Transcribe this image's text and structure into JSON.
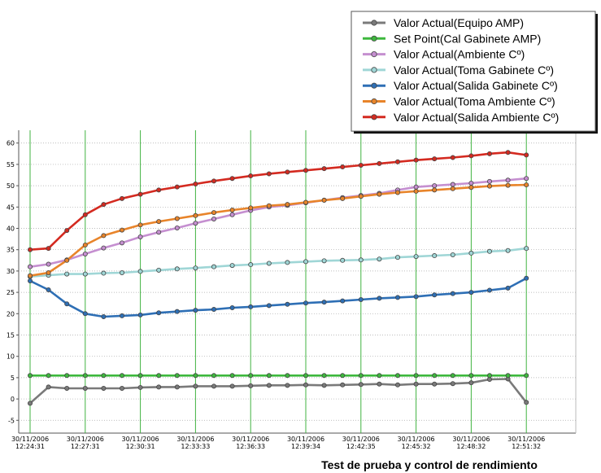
{
  "chart_data": {
    "type": "line",
    "title": "",
    "caption": "Test de prueba  y control de rendimiento",
    "xlabel": "",
    "ylabel": "",
    "ylim": [
      -8,
      63
    ],
    "y_ticks": [
      -5,
      0,
      5,
      10,
      15,
      20,
      25,
      30,
      35,
      40,
      45,
      50,
      55,
      60
    ],
    "grid": true,
    "legend_position": "top-right",
    "x_tick_labels": [
      [
        "30/11/2006",
        "12:24:31"
      ],
      [
        "30/11/2006",
        "12:27:31"
      ],
      [
        "30/11/2006",
        "12:30:31"
      ],
      [
        "30/11/2006",
        "12:33:33"
      ],
      [
        "30/11/2006",
        "12:36:33"
      ],
      [
        "30/11/2006",
        "12:39:34"
      ],
      [
        "30/11/2006",
        "12:42:35"
      ],
      [
        "30/11/2006",
        "12:45:32"
      ],
      [
        "30/11/2006",
        "12:48:32"
      ],
      [
        "30/11/2006",
        "12:51:32"
      ]
    ],
    "series": [
      {
        "name": "Valor Actual(Equipo AMP)",
        "color": "#7a7a7a",
        "values": [
          -1,
          2.8,
          2.5,
          2.5,
          2.5,
          2.5,
          2.7,
          2.8,
          2.8,
          3,
          3,
          3,
          3.1,
          3.2,
          3.2,
          3.3,
          3.2,
          3.3,
          3.4,
          3.5,
          3.3,
          3.5,
          3.5,
          3.6,
          3.8,
          4.6,
          4.7,
          -0.8
        ]
      },
      {
        "name": "Set Point(Cal Gabinete AMP)",
        "color": "#3db83d",
        "values": [
          5.5,
          5.5,
          5.5,
          5.5,
          5.5,
          5.5,
          5.5,
          5.5,
          5.5,
          5.5,
          5.5,
          5.5,
          5.5,
          5.5,
          5.5,
          5.5,
          5.5,
          5.5,
          5.5,
          5.5,
          5.5,
          5.5,
          5.5,
          5.5,
          5.5,
          5.5,
          5.5,
          5.5
        ]
      },
      {
        "name": "Valor Actual(Ambiente Cº)",
        "color": "#c58fd0",
        "values": [
          31,
          31.6,
          32.6,
          34,
          35.4,
          36.6,
          38,
          39.1,
          40.1,
          41.2,
          42.2,
          43.2,
          44.2,
          45,
          45.4,
          46,
          46.6,
          47.2,
          47.7,
          48.2,
          49,
          49.7,
          50,
          50.3,
          50.6,
          51,
          51.3,
          51.7
        ]
      },
      {
        "name": "Valor Actual(Toma Gabinete Cº)",
        "color": "#9fd6d6",
        "values": [
          28.7,
          29,
          29.3,
          29.3,
          29.5,
          29.6,
          29.9,
          30.2,
          30.5,
          30.7,
          31,
          31.3,
          31.5,
          31.8,
          32,
          32.2,
          32.4,
          32.5,
          32.6,
          32.8,
          33.2,
          33.4,
          33.6,
          33.8,
          34.2,
          34.6,
          34.8,
          35.3
        ]
      },
      {
        "name": "Valor Actual(Salida  Gabinete Cº)",
        "color": "#2e6fb5",
        "values": [
          27.7,
          25.6,
          22.3,
          20,
          19.3,
          19.5,
          19.7,
          20.2,
          20.5,
          20.8,
          21,
          21.4,
          21.6,
          21.9,
          22.2,
          22.5,
          22.7,
          23,
          23.3,
          23.6,
          23.8,
          24,
          24.4,
          24.7,
          25,
          25.5,
          26,
          28.3
        ]
      },
      {
        "name": "Valor Actual(Toma Ambiente Cº)",
        "color": "#e8842a",
        "values": [
          28.9,
          29.6,
          32.5,
          36.1,
          38.3,
          39.6,
          40.8,
          41.6,
          42.3,
          43,
          43.7,
          44.3,
          44.8,
          45.3,
          45.6,
          46.1,
          46.6,
          47,
          47.5,
          48,
          48.4,
          48.7,
          49,
          49.3,
          49.6,
          49.9,
          50.1,
          50.2
        ]
      },
      {
        "name": "Valor Actual(Salida Ambiente Cº)",
        "color": "#d42a20",
        "values": [
          35,
          35.3,
          39.5,
          43.2,
          45.6,
          47,
          48,
          49,
          49.7,
          50.4,
          51.1,
          51.7,
          52.3,
          52.8,
          53.2,
          53.6,
          54,
          54.4,
          54.8,
          55.2,
          55.6,
          56,
          56.3,
          56.6,
          57,
          57.5,
          57.8,
          57.2
        ]
      }
    ]
  }
}
